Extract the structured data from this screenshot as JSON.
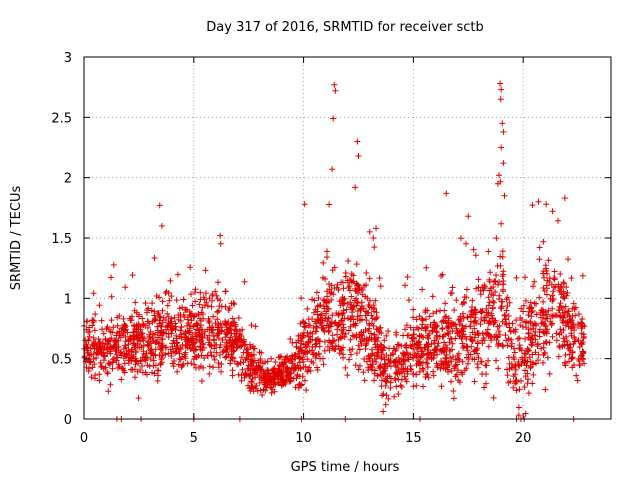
{
  "chart_data": {
    "type": "scatter",
    "title": "Day 317 of 2016, SRMTID for receiver sctb",
    "xlabel": "GPS time / hours",
    "ylabel": "SRMTID / TECUs",
    "xlim": [
      0,
      24
    ],
    "ylim": [
      0,
      3
    ],
    "xticks": [
      0,
      5,
      10,
      15,
      20
    ],
    "xtick_labels": [
      "0",
      "5",
      "10",
      "15",
      "20"
    ],
    "yticks": [
      0,
      0.5,
      1,
      1.5,
      2,
      2.5,
      3
    ],
    "ytick_labels": [
      "0",
      "0.5",
      "1",
      "1.5",
      "2",
      "2.5",
      "3"
    ],
    "grid": true,
    "marker": "+",
    "color": "#e00000",
    "x_range": [
      0,
      22.8
    ],
    "profile": [
      {
        "x": 0.0,
        "mean": 0.55,
        "spread": 0.22
      },
      {
        "x": 1.0,
        "mean": 0.58,
        "spread": 0.25
      },
      {
        "x": 2.0,
        "mean": 0.62,
        "spread": 0.28
      },
      {
        "x": 3.0,
        "mean": 0.65,
        "spread": 0.3
      },
      {
        "x": 4.0,
        "mean": 0.7,
        "spread": 0.3
      },
      {
        "x": 5.0,
        "mean": 0.68,
        "spread": 0.28
      },
      {
        "x": 6.0,
        "mean": 0.72,
        "spread": 0.3
      },
      {
        "x": 7.0,
        "mean": 0.62,
        "spread": 0.25
      },
      {
        "x": 7.8,
        "mean": 0.38,
        "spread": 0.15
      },
      {
        "x": 8.5,
        "mean": 0.33,
        "spread": 0.12
      },
      {
        "x": 9.5,
        "mean": 0.42,
        "spread": 0.15
      },
      {
        "x": 10.0,
        "mean": 0.55,
        "spread": 0.25
      },
      {
        "x": 11.0,
        "mean": 0.8,
        "spread": 0.4
      },
      {
        "x": 12.0,
        "mean": 0.85,
        "spread": 0.45
      },
      {
        "x": 13.0,
        "mean": 0.75,
        "spread": 0.4
      },
      {
        "x": 13.8,
        "mean": 0.4,
        "spread": 0.22
      },
      {
        "x": 14.5,
        "mean": 0.45,
        "spread": 0.25
      },
      {
        "x": 15.0,
        "mean": 0.6,
        "spread": 0.28
      },
      {
        "x": 16.0,
        "mean": 0.62,
        "spread": 0.3
      },
      {
        "x": 17.0,
        "mean": 0.65,
        "spread": 0.35
      },
      {
        "x": 18.0,
        "mean": 0.72,
        "spread": 0.38
      },
      {
        "x": 19.0,
        "mean": 0.9,
        "spread": 0.5
      },
      {
        "x": 19.7,
        "mean": 0.45,
        "spread": 0.35
      },
      {
        "x": 20.5,
        "mean": 0.75,
        "spread": 0.4
      },
      {
        "x": 21.5,
        "mean": 0.9,
        "spread": 0.4
      },
      {
        "x": 22.8,
        "mean": 0.6,
        "spread": 0.25
      }
    ],
    "peaks": [
      {
        "x": 3.45,
        "y": 1.77
      },
      {
        "x": 3.55,
        "y": 1.6
      },
      {
        "x": 6.2,
        "y": 1.52
      },
      {
        "x": 10.05,
        "y": 1.78
      },
      {
        "x": 11.4,
        "y": 2.77
      },
      {
        "x": 11.45,
        "y": 2.72
      },
      {
        "x": 11.35,
        "y": 2.49
      },
      {
        "x": 11.3,
        "y": 2.07
      },
      {
        "x": 12.45,
        "y": 2.3
      },
      {
        "x": 12.5,
        "y": 2.18
      },
      {
        "x": 12.35,
        "y": 1.92
      },
      {
        "x": 13.3,
        "y": 1.58
      },
      {
        "x": 16.5,
        "y": 1.87
      },
      {
        "x": 17.5,
        "y": 1.68
      },
      {
        "x": 18.95,
        "y": 2.78
      },
      {
        "x": 19.0,
        "y": 2.73
      },
      {
        "x": 18.98,
        "y": 2.65
      },
      {
        "x": 19.05,
        "y": 2.45
      },
      {
        "x": 19.1,
        "y": 2.38
      },
      {
        "x": 19.0,
        "y": 2.25
      },
      {
        "x": 19.1,
        "y": 2.12
      },
      {
        "x": 18.9,
        "y": 2.02
      },
      {
        "x": 18.85,
        "y": 1.95
      },
      {
        "x": 19.15,
        "y": 1.85
      },
      {
        "x": 20.7,
        "y": 1.8
      },
      {
        "x": 21.05,
        "y": 1.78
      },
      {
        "x": 21.9,
        "y": 1.83
      },
      {
        "x": 19.7,
        "y": 0.0
      },
      {
        "x": 19.9,
        "y": 0.0
      },
      {
        "x": 20.05,
        "y": 0.0
      },
      {
        "x": 1.5,
        "y": 0.0
      },
      {
        "x": 1.7,
        "y": 0.0
      },
      {
        "x": 2.6,
        "y": 0.0
      },
      {
        "x": 5.0,
        "y": 0.0
      },
      {
        "x": 7.1,
        "y": 0.0
      },
      {
        "x": 9.9,
        "y": 0.0
      },
      {
        "x": 11.9,
        "y": 0.0
      },
      {
        "x": 15.3,
        "y": 0.0
      },
      {
        "x": 22.3,
        "y": 0.0
      }
    ]
  }
}
